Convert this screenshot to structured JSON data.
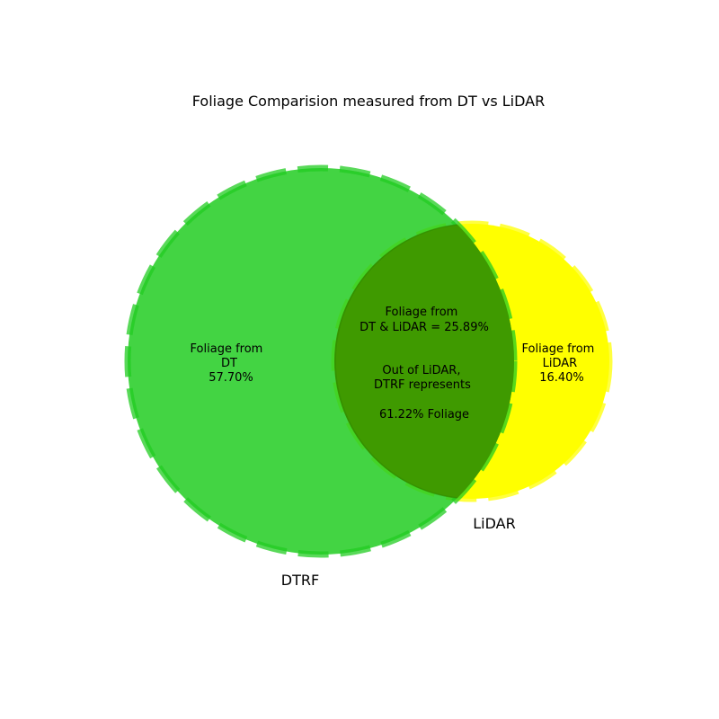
{
  "chart_data": {
    "type": "venn",
    "title": "Foliage Comparision measured from DT vs LiDAR",
    "sets": [
      {
        "name": "DTRF",
        "color": "#22cc22"
      },
      {
        "name": "LiDAR",
        "color": "#ffff00"
      }
    ],
    "regions": [
      {
        "key": "dt_only",
        "lines": [
          "Foliage from",
          "DT",
          "57.70%"
        ],
        "value_pct": 57.7
      },
      {
        "key": "lidar_only",
        "lines": [
          "Foliage from",
          "LiDAR",
          "16.40%"
        ],
        "value_pct": 16.4
      },
      {
        "key": "overlap",
        "lines": [
          "Foliage from",
          "DT & LiDAR = 25.89%"
        ],
        "value_pct": 25.89
      }
    ],
    "annotation": {
      "lines": [
        "Out of LiDAR,",
        "DTRF represents",
        "",
        "61.22%  Foliage"
      ],
      "value_pct": 61.22
    },
    "overlap_color": "#3f9a00"
  }
}
